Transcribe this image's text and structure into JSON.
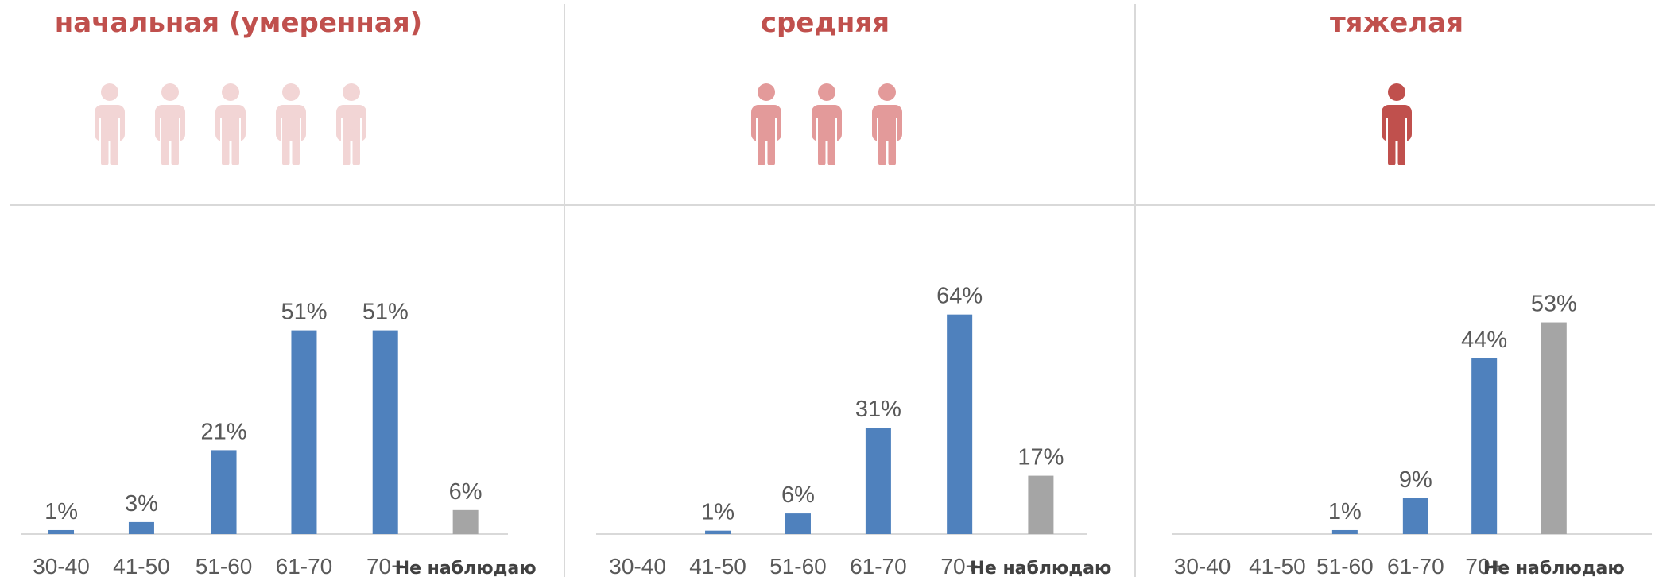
{
  "chart_data": [
    {
      "type": "bar",
      "title": "начальная (умеренная)",
      "title_color": "#c0504d",
      "icons": {
        "count": 5,
        "color": "#f2d5d5"
      },
      "categories": [
        "30-40",
        "41-50",
        "51-60",
        "61-70",
        "70+",
        "Не наблюдаю"
      ],
      "values": [
        1,
        3,
        21,
        51,
        51,
        6
      ],
      "value_labels": [
        "1%",
        "3%",
        "21%",
        "51%",
        "51%",
        "6%"
      ],
      "colors": [
        "#4f81bd",
        "#4f81bd",
        "#4f81bd",
        "#4f81bd",
        "#4f81bd",
        "#a5a5a5"
      ],
      "ylim": [
        0,
        73
      ]
    },
    {
      "type": "bar",
      "title": "средняя",
      "title_color": "#c0504d",
      "icons": {
        "count": 3,
        "color": "#e39a9a"
      },
      "categories": [
        "30-40",
        "41-50",
        "51-60",
        "61-70",
        "70+",
        "Не наблюдаю"
      ],
      "values": [
        null,
        1,
        6,
        31,
        64,
        17
      ],
      "value_labels": [
        null,
        "1%",
        "6%",
        "31%",
        "64%",
        "17%"
      ],
      "colors": [
        "#4f81bd",
        "#4f81bd",
        "#4f81bd",
        "#4f81bd",
        "#4f81bd",
        "#a5a5a5"
      ],
      "ylim": [
        0,
        85
      ]
    },
    {
      "type": "bar",
      "title": "тяжелая",
      "title_color": "#c0504d",
      "icons": {
        "count": 1,
        "color": "#c0504d"
      },
      "categories": [
        "30-40",
        "41-50",
        "51-60",
        "61-70",
        "70+",
        "Не наблюдаю"
      ],
      "values": [
        null,
        null,
        1,
        9,
        44,
        53
      ],
      "value_labels": [
        null,
        null,
        "1%",
        "9%",
        "44%",
        "53%"
      ],
      "colors": [
        "#4f81bd",
        "#4f81bd",
        "#4f81bd",
        "#4f81bd",
        "#4f81bd",
        "#a5a5a5"
      ],
      "ylim": [
        0,
        73
      ]
    }
  ]
}
